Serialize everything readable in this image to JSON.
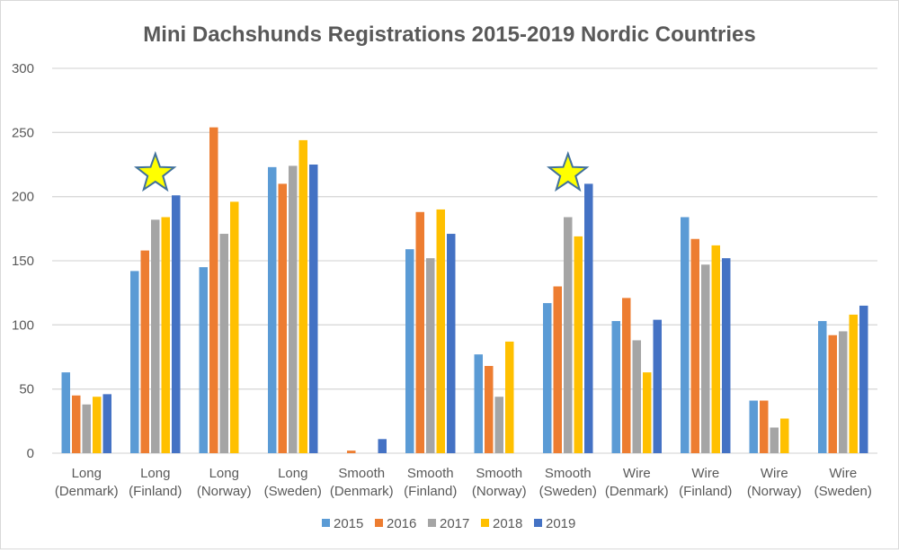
{
  "chart_data": {
    "type": "bar",
    "title": "Mini Dachshunds Registrations 2015-2019 Nordic Countries",
    "categories": [
      [
        "Long",
        "(Denmark)"
      ],
      [
        "Long",
        "(Finland)"
      ],
      [
        "Long",
        "(Norway)"
      ],
      [
        "Long",
        "(Sweden)"
      ],
      [
        "Smooth",
        "(Denmark)"
      ],
      [
        "Smooth",
        "(Finland)"
      ],
      [
        "Smooth",
        "(Norway)"
      ],
      [
        "Smooth",
        "(Sweden)"
      ],
      [
        "Wire",
        "(Denmark)"
      ],
      [
        "Wire",
        "(Finland)"
      ],
      [
        "Wire",
        "(Norway)"
      ],
      [
        "Wire",
        "(Sweden)"
      ]
    ],
    "ylim": [
      0,
      300
    ],
    "yticks": [
      0,
      50,
      100,
      150,
      200,
      250,
      300
    ],
    "grid": true,
    "legend": "bottom",
    "series": [
      {
        "name": "2015",
        "color": "#5b9bd5",
        "values": [
          63,
          142,
          145,
          223,
          0,
          159,
          77,
          117,
          103,
          184,
          41,
          103
        ]
      },
      {
        "name": "2016",
        "color": "#ed7d31",
        "values": [
          45,
          158,
          254,
          210,
          2,
          188,
          68,
          130,
          121,
          167,
          41,
          92
        ]
      },
      {
        "name": "2017",
        "color": "#a5a5a5",
        "values": [
          38,
          182,
          171,
          224,
          0,
          152,
          44,
          184,
          88,
          147,
          20,
          95
        ]
      },
      {
        "name": "2018",
        "color": "#ffc000",
        "values": [
          44,
          184,
          196,
          244,
          0,
          190,
          87,
          169,
          63,
          162,
          27,
          108
        ]
      },
      {
        "name": "2019",
        "color": "#4472c4",
        "values": [
          46,
          201,
          0,
          225,
          11,
          171,
          0,
          210,
          104,
          152,
          0,
          115
        ]
      }
    ],
    "annotations": [
      {
        "type": "star",
        "category_index": 1,
        "color": "#ffff00"
      },
      {
        "type": "star",
        "category_index": 7,
        "color": "#ffff00"
      }
    ]
  }
}
